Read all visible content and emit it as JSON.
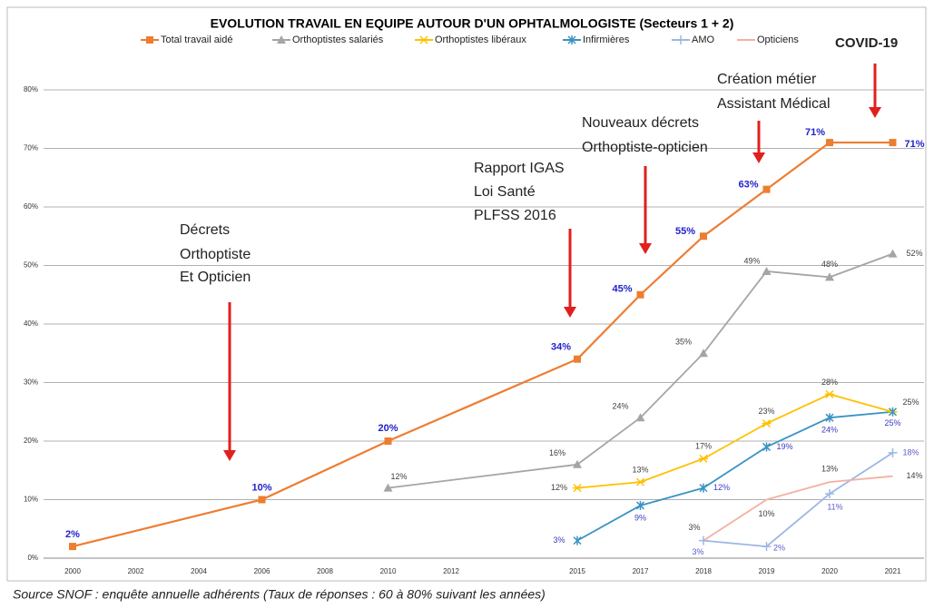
{
  "chart_data": {
    "type": "line",
    "title": "EVOLUTION TRAVAIL EN EQUIPE AUTOUR D'UN OPHTALMOLOGISTE (Secteurs 1 + 2)",
    "categories": [
      "2000",
      "2002",
      "2004",
      "2006",
      "2008",
      "2010",
      "2012",
      null,
      "2015",
      "2017",
      "2018",
      "2019",
      "2020",
      "2021"
    ],
    "ylim": [
      0,
      80
    ],
    "yticks": [
      {
        "value": 0,
        "label": "0%"
      },
      {
        "value": 10,
        "label": "10%"
      },
      {
        "value": 20,
        "label": "20%"
      },
      {
        "value": 30,
        "label": "30%"
      },
      {
        "value": 40,
        "label": "40%"
      },
      {
        "value": 50,
        "label": "50%"
      },
      {
        "value": 60,
        "label": "60%"
      },
      {
        "value": 70,
        "label": "70%"
      },
      {
        "value": 80,
        "label": "80%"
      }
    ],
    "grid": true,
    "connect_gaps": true,
    "series": [
      {
        "name": "Total travail aidé",
        "color": "#ed7d31",
        "marker": "square",
        "label_color": "#2222cc",
        "values": [
          2,
          null,
          null,
          10,
          null,
          20,
          null,
          null,
          34,
          45,
          55,
          63,
          71,
          71
        ],
        "value_labels": [
          "2%",
          null,
          null,
          "10%",
          null,
          "20%",
          null,
          null,
          "34%",
          "45%",
          "55%",
          "63%",
          "71%",
          "71%"
        ]
      },
      {
        "name": "Orthoptistes salariés",
        "color": "#a5a5a5",
        "marker": "triangle",
        "label_color": "#404040",
        "values": [
          null,
          null,
          null,
          null,
          null,
          12,
          null,
          null,
          16,
          24,
          35,
          49,
          48,
          52
        ],
        "value_labels": [
          null,
          null,
          null,
          null,
          null,
          "12%",
          null,
          null,
          "16%",
          "24%",
          "35%",
          "49%",
          "48%",
          "52%"
        ]
      },
      {
        "name": "Orthoptistes libéraux",
        "color": "#ffc000",
        "marker": "star",
        "label_color": "#404040",
        "values": [
          null,
          null,
          null,
          null,
          null,
          null,
          null,
          null,
          12,
          13,
          17,
          23,
          28,
          25
        ],
        "value_labels": [
          null,
          null,
          null,
          null,
          null,
          null,
          null,
          null,
          "12%",
          "13%",
          "17%",
          "23%",
          "28%",
          "25%"
        ]
      },
      {
        "name": "Infirmières",
        "color": "#3a93c3",
        "marker": "asterisk",
        "label_color": "#3b3bc0",
        "values": [
          null,
          null,
          null,
          null,
          null,
          null,
          null,
          null,
          3,
          9,
          12,
          19,
          24,
          25
        ],
        "value_labels": [
          null,
          null,
          null,
          null,
          null,
          null,
          null,
          null,
          "3%",
          "9%",
          "12%",
          "19%",
          "24%",
          "25%"
        ]
      },
      {
        "name": "AMO",
        "color": "#9db7e3",
        "marker": "plus",
        "label_color": "#5b5bd0",
        "values": [
          null,
          null,
          null,
          null,
          null,
          null,
          null,
          null,
          null,
          null,
          3,
          2,
          11,
          18
        ],
        "value_labels": [
          null,
          null,
          null,
          null,
          null,
          null,
          null,
          null,
          null,
          null,
          "3%",
          "2%",
          "11%",
          "18%"
        ]
      },
      {
        "name": "Opticiens",
        "color": "#f4b0a0",
        "marker": "none",
        "label_color": "#404040",
        "values": [
          null,
          null,
          null,
          null,
          null,
          null,
          null,
          null,
          null,
          null,
          3,
          10,
          13,
          14
        ],
        "value_labels": [
          null,
          null,
          null,
          null,
          null,
          null,
          null,
          null,
          null,
          null,
          "3%",
          "10%",
          "13%",
          "14%"
        ]
      }
    ],
    "annotations": [
      {
        "lines": [
          "Décrets",
          "Orthoptiste",
          "Et Opticien"
        ]
      },
      {
        "lines": [
          "Rapport IGAS",
          "Loi Santé",
          "PLFSS 2016"
        ]
      },
      {
        "lines": [
          "Nouveaux décrets",
          "Orthoptiste-opticien"
        ]
      },
      {
        "lines": [
          "Création métier",
          "Assistant Médical"
        ]
      },
      {
        "lines": [
          "COVID-19"
        ]
      }
    ],
    "source": "Source SNOF : enquête annuelle adhérents (Taux de réponses  : 60 à 80% suivant les années)"
  }
}
